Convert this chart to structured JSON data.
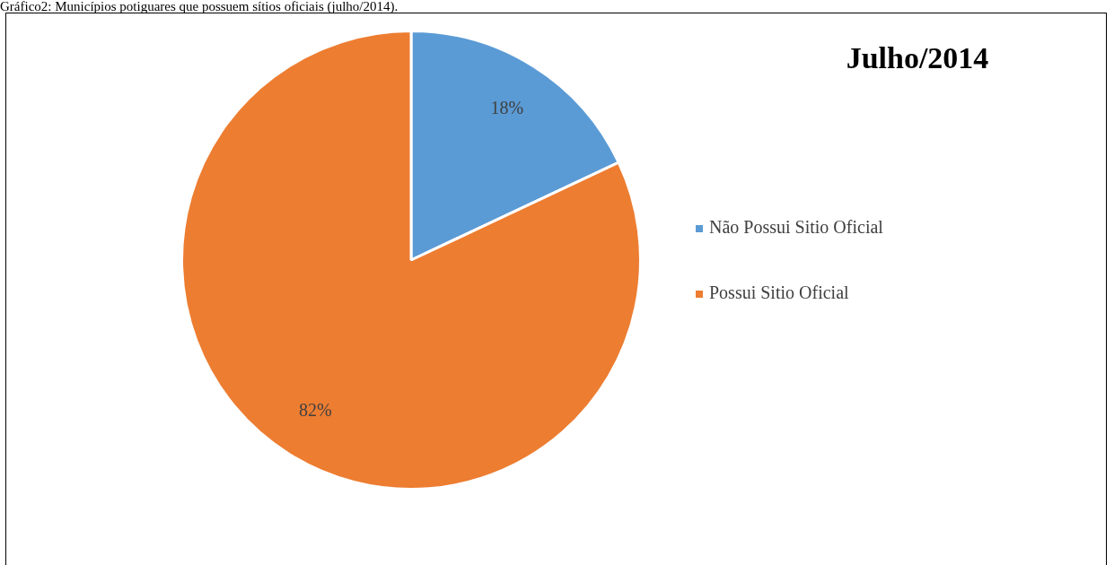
{
  "chart_data": {
    "type": "pie",
    "title": "Julho/2014",
    "annotations": [
      "Gráfico2: Municípios potiguares que possuem sítios oficiais (julho/2014)."
    ],
    "categories": [
      "Não Possui Sitio Oficial",
      "Possui Sitio Oficial"
    ],
    "values": [
      18,
      82
    ],
    "colors": [
      "#5b9bd5",
      "#ed7d31"
    ],
    "value_labels": [
      "18%",
      "82%"
    ],
    "legend": "right"
  }
}
